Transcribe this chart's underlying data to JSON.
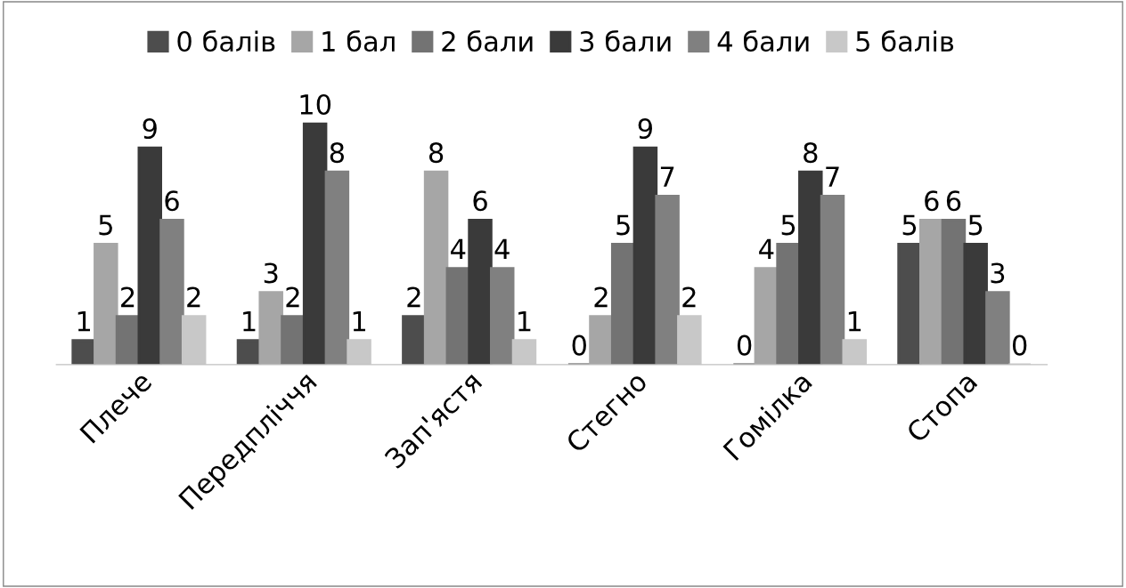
{
  "chart_data": {
    "type": "bar",
    "categories": [
      "Плече",
      "Передпліччя",
      "Зап'ястя",
      "Стегно",
      "Гомілка",
      "Стопа"
    ],
    "series": [
      {
        "name": "0 балів",
        "color": "#4d4d4d",
        "values": [
          1,
          1,
          2,
          0,
          0,
          5
        ]
      },
      {
        "name": "1 бал",
        "color": "#a6a6a6",
        "values": [
          5,
          3,
          8,
          2,
          4,
          6
        ]
      },
      {
        "name": "2 бали",
        "color": "#737373",
        "values": [
          2,
          2,
          4,
          5,
          5,
          6
        ]
      },
      {
        "name": "3 бали",
        "color": "#3a3a3a",
        "values": [
          9,
          10,
          6,
          9,
          8,
          5
        ]
      },
      {
        "name": "4 бали",
        "color": "#808080",
        "values": [
          6,
          8,
          4,
          7,
          7,
          3
        ]
      },
      {
        "name": "5 балів",
        "color": "#c8c8c8",
        "values": [
          2,
          1,
          1,
          2,
          1,
          0
        ]
      }
    ],
    "data_labels": true,
    "legend": "top"
  }
}
